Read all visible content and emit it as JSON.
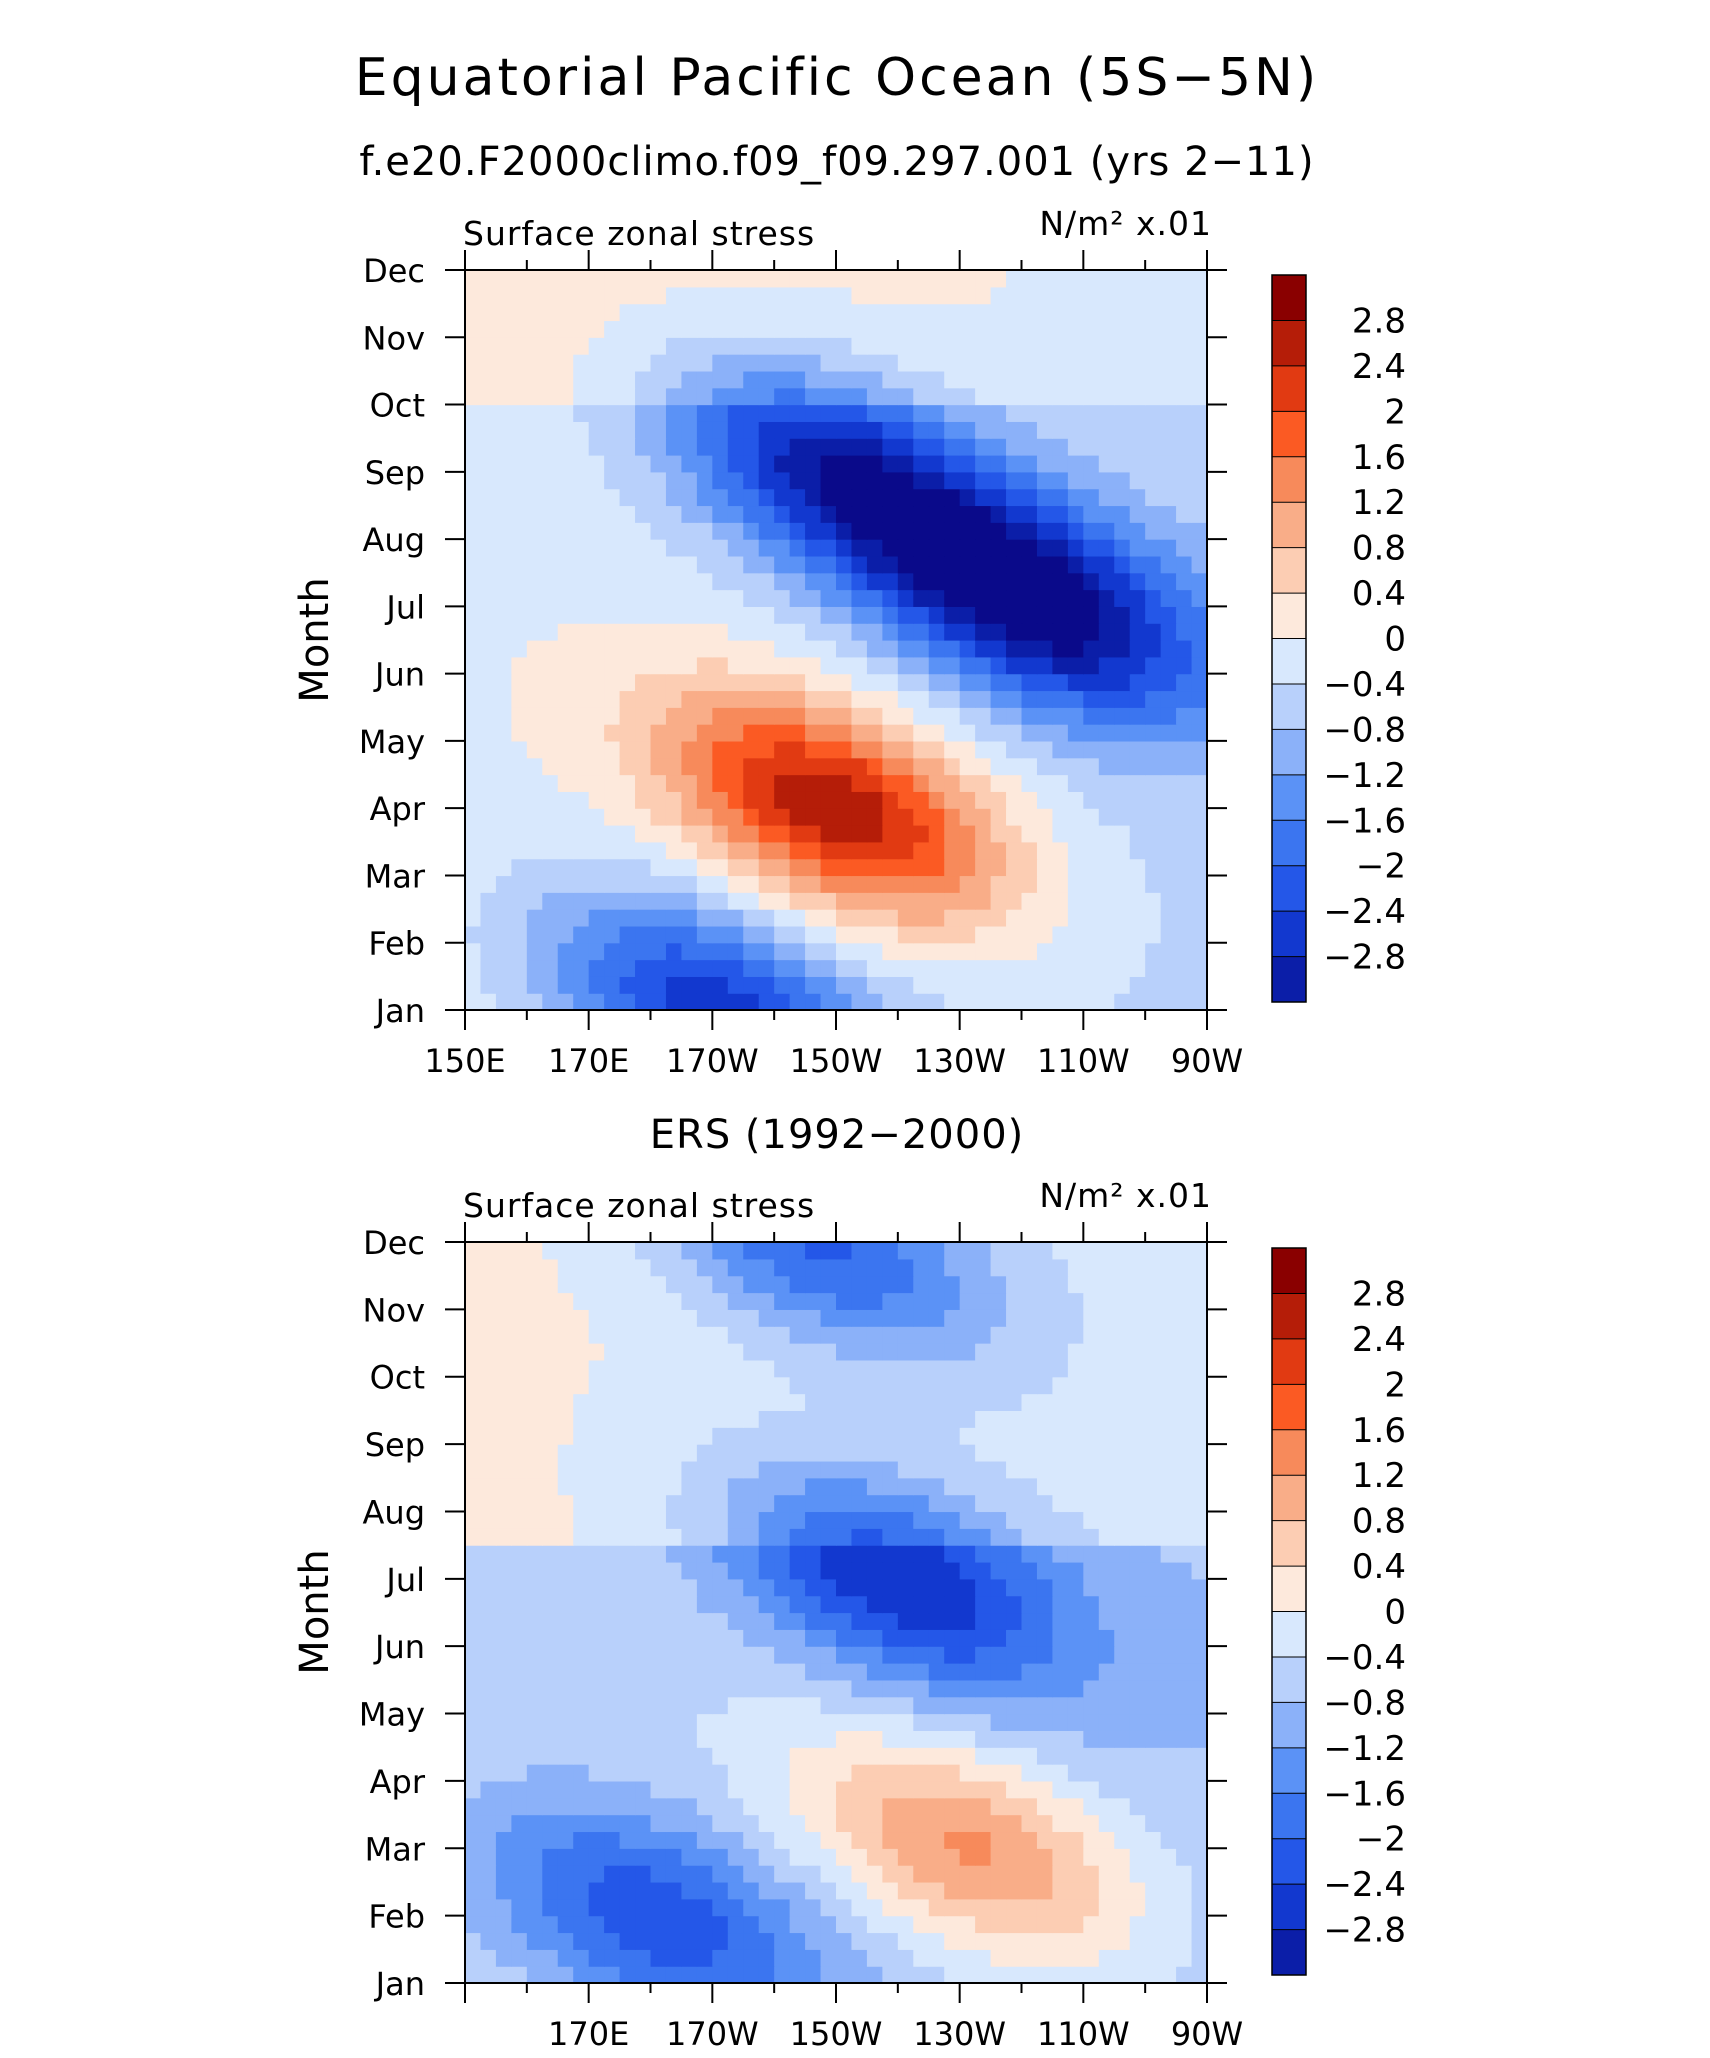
{
  "title": "Equatorial Pacific Ocean (5S−5N)",
  "colors": {
    "levels": [
      "#0a0a8a",
      "#0b1ea8",
      "#1238cf",
      "#2457e8",
      "#3b75f0",
      "#5b92f6",
      "#8bb1f9",
      "#b8d0fb",
      "#d8e8fd",
      "#fde9dc",
      "#fccdb3",
      "#f9ad88",
      "#f78a5b",
      "#fb5a23",
      "#e13a12",
      "#b51d08",
      "#8a0000"
    ]
  },
  "chart_data": [
    {
      "type": "contour",
      "title": "f.e20.F2000climo.f09_f09.297.001 (yrs 2−11)",
      "left_string": "Surface zonal stress",
      "right_string": "N/m² x.01",
      "ylabel": "Month",
      "y_ticks": [
        "Jan",
        "Feb",
        "Mar",
        "Apr",
        "May",
        "Jun",
        "Jul",
        "Aug",
        "Sep",
        "Oct",
        "Nov",
        "Dec"
      ],
      "x_ticks": [
        "150E",
        "170E",
        "170W",
        "150W",
        "130W",
        "110W",
        "90W"
      ],
      "x_range_deg_east": [
        150,
        270
      ],
      "colorbar_levels": [
        "2.8",
        "2.4",
        "2",
        "1.6",
        "1.2",
        "0.8",
        "0.4",
        "0",
        "−0.4",
        "−0.8",
        "−1.2",
        "−1.6",
        "−2",
        "−2.4",
        "−2.8"
      ],
      "features": [
        {
          "name": "westerly stress maximum",
          "center_lon_deg_east": 210,
          "center_month": "Apr",
          "peak_value": 3.0
        },
        {
          "name": "easterly stress minimum",
          "center_lon_deg_east": 243,
          "center_month": "Jul",
          "peak_value": -3.0
        },
        {
          "name": "secondary easterly minimum",
          "center_lon_deg_east": 210,
          "center_month": "Sep",
          "peak_value": -2.6
        },
        {
          "name": "winter easterly region",
          "center_lon_deg_east": 190,
          "center_month": "Jan",
          "peak_value": -2.4
        }
      ]
    },
    {
      "type": "contour",
      "title": "ERS (1992−2000)",
      "left_string": "Surface zonal stress",
      "right_string": "N/m² x.01",
      "ylabel": "Month",
      "y_ticks": [
        "Jan",
        "Feb",
        "Mar",
        "Apr",
        "May",
        "Jun",
        "Jul",
        "Aug",
        "Sep",
        "Oct",
        "Nov",
        "Dec"
      ],
      "x_ticks": [
        "170E",
        "170W",
        "150W",
        "130W",
        "110W",
        "90W"
      ],
      "x_range_deg_east": [
        150,
        270
      ],
      "colorbar_levels": [
        "2.8",
        "2.4",
        "2",
        "1.6",
        "1.2",
        "0.8",
        "0.4",
        "0",
        "−0.4",
        "−0.8",
        "−1.2",
        "−1.6",
        "−2",
        "−2.4",
        "−2.8"
      ],
      "features": [
        {
          "name": "westerly stress maximum",
          "center_lon_deg_east": 232,
          "center_month": "Mar",
          "peak_value": 1.9
        },
        {
          "name": "easterly stress minimum",
          "center_lon_deg_east": 220,
          "center_month": "Jul",
          "peak_value": -2.2
        },
        {
          "name": "winter easterly region",
          "center_lon_deg_east": 180,
          "center_month": "Feb",
          "peak_value": -1.8
        },
        {
          "name": "late-year easterly region",
          "center_lon_deg_east": 207,
          "center_month": "Dec",
          "peak_value": -2.0
        }
      ]
    }
  ]
}
